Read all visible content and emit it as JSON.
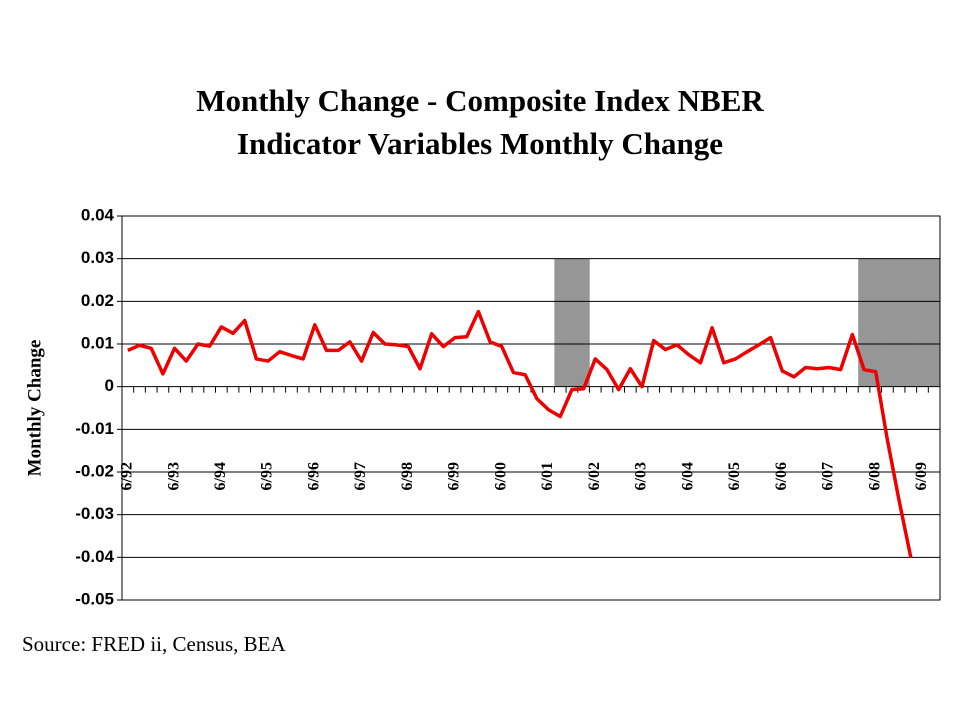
{
  "chart_data": {
    "type": "line",
    "title": [
      "Monthly Change - Composite Index NBER",
      "Indicator Variables Monthly Change"
    ],
    "y_label": "Monthly Change",
    "source": "Source: FRED ii, Census, BEA",
    "categories": [
      "6/92",
      null,
      null,
      null,
      "6/93",
      null,
      null,
      null,
      "6/94",
      null,
      null,
      null,
      "6/95",
      null,
      null,
      null,
      "6/96",
      null,
      null,
      null,
      "6/97",
      null,
      null,
      null,
      "6/98",
      null,
      null,
      null,
      "6/99",
      null,
      null,
      null,
      "6/00",
      null,
      null,
      null,
      "6/01",
      null,
      null,
      null,
      "6/02",
      null,
      null,
      null,
      "6/03",
      null,
      null,
      null,
      "6/04",
      null,
      null,
      null,
      "6/05",
      null,
      null,
      null,
      "6/06",
      null,
      null,
      null,
      "6/07",
      null,
      null,
      null,
      "6/08",
      null,
      null,
      null,
      "6/09",
      null
    ],
    "series": [
      {
        "name": "Monthly Change",
        "color": "#ee0000",
        "values": [
          0.0085,
          0.0097,
          0.009,
          0.003,
          0.009,
          0.006,
          0.01,
          0.0095,
          0.014,
          0.0125,
          0.0155,
          0.0065,
          0.006,
          0.0082,
          0.0073,
          0.0065,
          0.0145,
          0.0085,
          0.0085,
          0.0105,
          0.006,
          0.0127,
          0.01,
          0.0098,
          0.0094,
          0.0042,
          0.0124,
          0.0094,
          0.0115,
          0.0117,
          0.0176,
          0.0105,
          0.0094,
          0.0033,
          0.0028,
          -0.0028,
          -0.0054,
          -0.007,
          -0.0007,
          -0.0005,
          0.0065,
          0.004,
          -0.0007,
          0.0042,
          0,
          0.0108,
          0.0087,
          0.0098,
          0.0075,
          0.0056,
          0.0138,
          0.0056,
          0.0065,
          0.0082,
          0.0098,
          0.0115,
          0.0037,
          0.0023,
          0.0045,
          0.0042,
          0.0045,
          0.004,
          0.0122,
          0.004,
          0.0035,
          -0.0125,
          -0.0267,
          -0.04,
          null,
          null
        ]
      }
    ],
    "recession_shading": {
      "color": "#969696",
      "values": [
        null,
        null,
        null,
        null,
        null,
        null,
        null,
        null,
        null,
        null,
        null,
        null,
        null,
        null,
        null,
        null,
        null,
        null,
        null,
        null,
        null,
        null,
        null,
        null,
        null,
        null,
        null,
        null,
        null,
        null,
        null,
        null,
        null,
        null,
        null,
        null,
        null,
        0.03,
        0.03,
        0.03,
        null,
        null,
        null,
        null,
        null,
        null,
        null,
        null,
        null,
        null,
        null,
        null,
        null,
        null,
        null,
        null,
        null,
        null,
        null,
        null,
        null,
        null,
        null,
        0.03,
        0.03,
        0.03,
        0.03,
        0.03,
        0.03,
        0.03
      ]
    },
    "ylim": [
      -0.05,
      0.04
    ],
    "yticks": [
      -0.05,
      -0.04,
      -0.03,
      -0.02,
      -0.01,
      0,
      0.01,
      0.02,
      0.03,
      0.04
    ],
    "grid": true
  }
}
